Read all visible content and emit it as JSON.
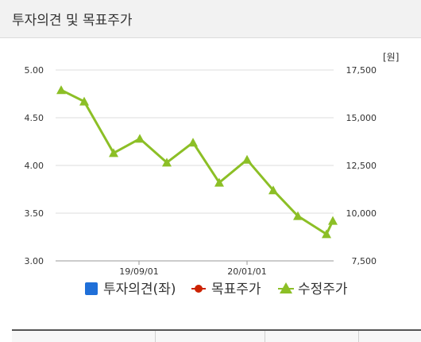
{
  "header": {
    "title": "투자의견 및 목표주가"
  },
  "chart_data": {
    "type": "line",
    "left_axis": {
      "ticks": [
        "5.00",
        "4.50",
        "4.00",
        "3.50",
        "3.00"
      ],
      "min": 3.0,
      "max": 5.0
    },
    "right_axis": {
      "unit": "[원]",
      "ticks": [
        "17,500",
        "15,000",
        "12,500",
        "10,000",
        "7,500"
      ],
      "min": 7500,
      "max": 17500
    },
    "x_ticks": [
      "19/09/01",
      "20/01/01"
    ],
    "grid": true,
    "legend_position": "bottom",
    "legend": [
      {
        "label": "투자의견(좌)",
        "marker": "square",
        "color": "#1f6fd8"
      },
      {
        "label": "목표주가",
        "marker": "circle",
        "color": "#cc2200"
      },
      {
        "label": "수정주가",
        "marker": "triangle",
        "color": "#8cbf26"
      }
    ],
    "series": [
      {
        "name": "수정주가",
        "color": "#8cbf26",
        "values": [
          16450,
          15850,
          13150,
          13900,
          12650,
          13700,
          11600,
          12800,
          11200,
          9850,
          8900,
          9600
        ]
      }
    ]
  }
}
